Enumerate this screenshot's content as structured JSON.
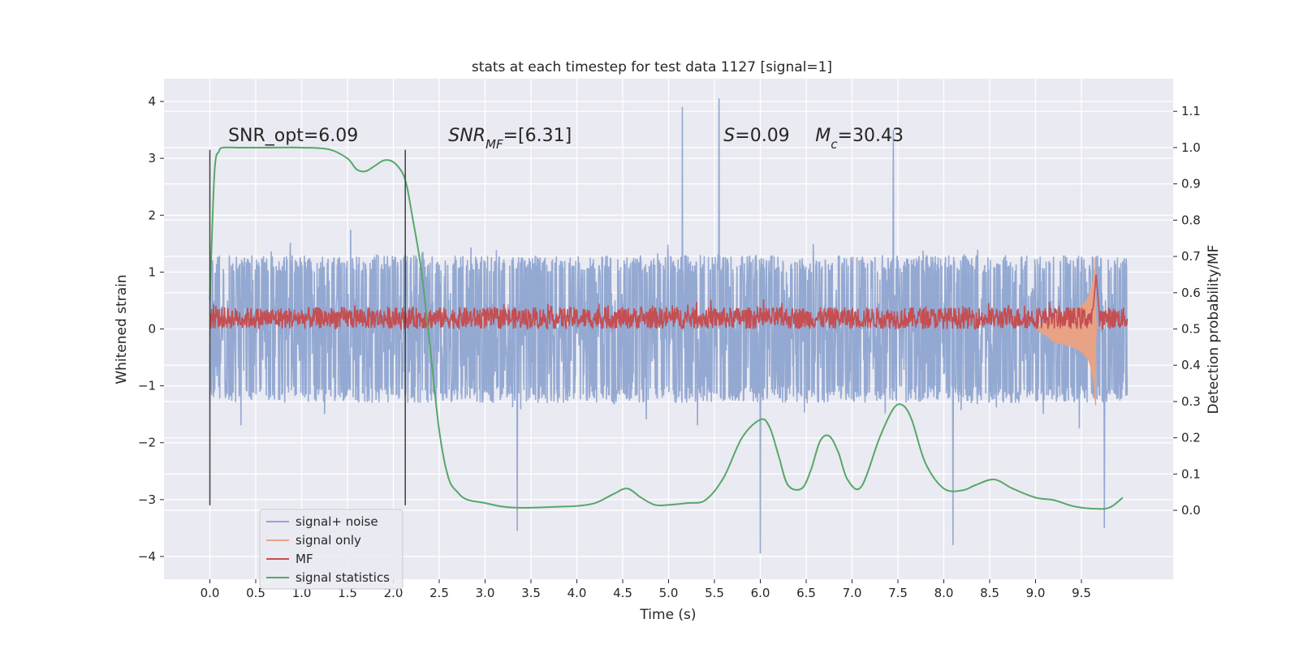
{
  "chart_data": {
    "type": "line",
    "title": "stats at each timestep for test data 1127 [signal=1]",
    "xlabel": "Time (s)",
    "ylabel": "Whitened strain",
    "ylabel_right": "Detection probability/MF",
    "xlim": [
      -0.5,
      10.5
    ],
    "ylim": [
      -4.4,
      4.4
    ],
    "ylim_right": [
      -0.19,
      1.19
    ],
    "x_ticks": [
      0.0,
      0.5,
      1.0,
      1.5,
      2.0,
      2.5,
      3.0,
      3.5,
      4.0,
      4.5,
      5.0,
      5.5,
      6.0,
      6.5,
      7.0,
      7.5,
      8.0,
      8.5,
      9.0,
      9.5
    ],
    "x_tick_labels": [
      "0.0",
      "0.5",
      "1.0",
      "1.5",
      "2.0",
      "2.5",
      "3.0",
      "3.5",
      "4.0",
      "4.5",
      "5.0",
      "5.5",
      "6.0",
      "6.5",
      "7.0",
      "7.5",
      "8.0",
      "8.5",
      "9.0",
      "9.5"
    ],
    "y_ticks": [
      4,
      3,
      2,
      1,
      0,
      -1,
      -2,
      -3,
      -4
    ],
    "y_tick_labels": [
      "4",
      "3",
      "2",
      "1",
      "0",
      "−1",
      "−2",
      "−3",
      "−4"
    ],
    "y_right_ticks": [
      1.1,
      1.0,
      0.9,
      0.8,
      0.7,
      0.6,
      0.5,
      0.4,
      0.3,
      0.2,
      0.1,
      0.0
    ],
    "y_right_tick_labels": [
      "1.1",
      "1.0",
      "0.9",
      "0.8",
      "0.7",
      "0.6",
      "0.5",
      "0.4",
      "0.3",
      "0.2",
      "0.1",
      "0.0"
    ],
    "grid": true,
    "legend_position": "lower-left",
    "series": [
      {
        "name": "signal+ noise",
        "color": "#8fa5d0",
        "axis": "left",
        "x_range": [
          0.0,
          10.0
        ],
        "typical_range": [
          -1.3,
          1.3
        ],
        "peaks": [
          [
            5.15,
            3.9
          ],
          [
            5.55,
            4.05
          ],
          [
            7.45,
            3.5
          ],
          [
            6.0,
            -3.95
          ],
          [
            8.1,
            -3.8
          ],
          [
            9.75,
            -3.5
          ],
          [
            3.35,
            -3.55
          ]
        ]
      },
      {
        "name": "signal only",
        "color": "#e8a285",
        "axis": "left",
        "x_range": [
          9.0,
          9.68
        ],
        "peak": [
          9.65,
          1.35
        ]
      },
      {
        "name": "MF",
        "color": "#c44e52",
        "axis": "right",
        "x_range": [
          0.0,
          10.0
        ],
        "typical_range": [
          0.5,
          0.56
        ],
        "peak": [
          9.66,
          0.65
        ]
      },
      {
        "name": "signal statistics",
        "color": "#55a868",
        "axis": "right",
        "x": [
          0.0,
          0.05,
          0.1,
          0.15,
          0.3,
          0.6,
          1.0,
          1.3,
          1.5,
          1.6,
          1.7,
          1.8,
          1.9,
          2.0,
          2.1,
          2.15,
          2.2,
          2.3,
          2.4,
          2.5,
          2.6,
          2.7,
          2.8,
          3.0,
          3.2,
          3.4,
          3.6,
          3.8,
          4.0,
          4.2,
          4.4,
          4.55,
          4.7,
          4.85,
          5.0,
          5.2,
          5.4,
          5.6,
          5.8,
          6.0,
          6.1,
          6.2,
          6.3,
          6.45,
          6.55,
          6.65,
          6.75,
          6.85,
          6.95,
          7.1,
          7.3,
          7.45,
          7.55,
          7.65,
          7.8,
          8.0,
          8.2,
          8.35,
          8.55,
          8.75,
          9.0,
          9.2,
          9.4,
          9.6,
          9.8,
          9.95
        ],
        "y": [
          0.58,
          0.93,
          0.99,
          1.0,
          1.0,
          1.0,
          1.0,
          0.995,
          0.97,
          0.94,
          0.935,
          0.95,
          0.965,
          0.96,
          0.93,
          0.89,
          0.82,
          0.67,
          0.45,
          0.22,
          0.09,
          0.05,
          0.03,
          0.02,
          0.01,
          0.007,
          0.008,
          0.01,
          0.012,
          0.02,
          0.045,
          0.06,
          0.035,
          0.015,
          0.015,
          0.02,
          0.028,
          0.09,
          0.2,
          0.25,
          0.23,
          0.15,
          0.07,
          0.06,
          0.11,
          0.19,
          0.205,
          0.16,
          0.085,
          0.065,
          0.2,
          0.28,
          0.29,
          0.25,
          0.13,
          0.06,
          0.055,
          0.07,
          0.085,
          0.06,
          0.035,
          0.028,
          0.012,
          0.005,
          0.007,
          0.035
        ]
      }
    ],
    "vertical_lines": [
      {
        "x": 0.0,
        "color": "#404040"
      },
      {
        "x": 2.13,
        "color": "#404040"
      }
    ],
    "annotations": [
      {
        "x": 0.2,
        "y": 3.3,
        "parts": [
          {
            "t": "SNR_opt=6.09",
            "i": false
          }
        ]
      },
      {
        "x": 2.6,
        "y": 3.3,
        "parts": [
          {
            "t": "SNR",
            "i": true
          },
          {
            "t": "MF",
            "i": true,
            "sub": true
          },
          {
            "t": "=[6.31]",
            "i": false
          }
        ]
      },
      {
        "x": 5.6,
        "y": 3.3,
        "parts": [
          {
            "t": "S",
            "i": true
          },
          {
            "t": "=0.09",
            "i": false
          }
        ]
      },
      {
        "x": 6.6,
        "y": 3.3,
        "parts": [
          {
            "t": "M",
            "i": true
          },
          {
            "t": "c",
            "i": true,
            "sub": true
          },
          {
            "t": "=30.43",
            "i": false
          }
        ]
      }
    ]
  }
}
